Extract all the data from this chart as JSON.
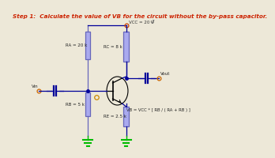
{
  "title": "Step 1:  Calculate the value of VB for the circuit without the by-pass capacitor.",
  "title_color": "#cc2200",
  "title_fontsize": 5.2,
  "bg_color": "#ede8d8",
  "vcc_label": "VCC = 20 V",
  "ra_label": "RA = 20 k",
  "rb_label": "RB = 5 k",
  "rc_label": "RC = 8 k",
  "re_label": "RE = 2.5 k",
  "vin_label": "Vin",
  "vout_label": "Vout",
  "formula_label": "VB = VCC * [ RB / ( RA + RB ) ]",
  "resistor_fill": "#aaaaee",
  "resistor_edge": "#6666bb",
  "wire_color": "#000099",
  "ground_color": "#00bb00",
  "transistor_color": "#000000",
  "dot_color": "#000099",
  "node_circle_color": "#cc6600",
  "vcc_circle_color": "#cc4400"
}
